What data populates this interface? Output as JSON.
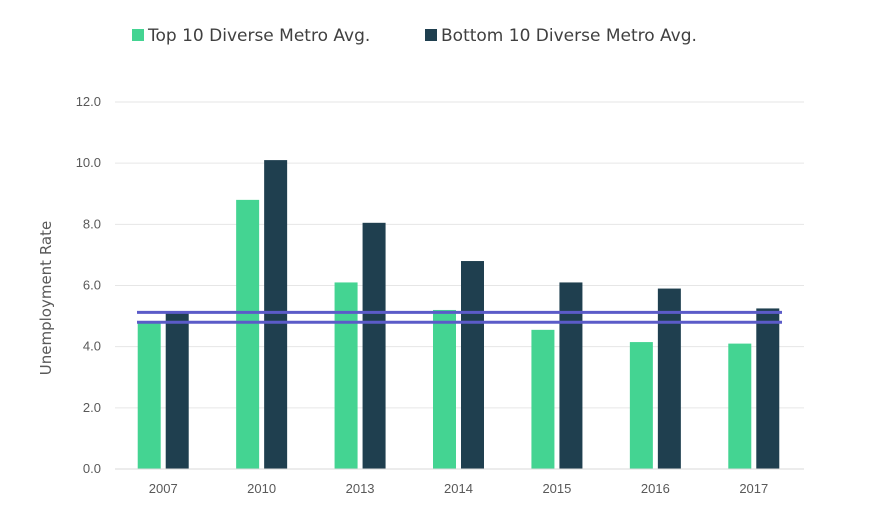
{
  "chart_data": {
    "type": "bar",
    "title": "",
    "xlabel": "",
    "ylabel": "Unemployment Rate",
    "ylim": [
      0,
      12
    ],
    "yticks": [
      "0.0",
      "2.0",
      "4.0",
      "6.0",
      "8.0",
      "10.0",
      "12.0"
    ],
    "ytick_values": [
      0,
      2,
      4,
      6,
      8,
      10,
      12
    ],
    "grid": true,
    "legend_position": "top",
    "categories": [
      "2007",
      "2010",
      "2013",
      "2014",
      "2015",
      "2016",
      "2017"
    ],
    "series": [
      {
        "name": "Top 10 Diverse Metro Avg.",
        "color": "#44d492",
        "values": [
          4.8,
          8.8,
          6.1,
          5.2,
          4.55,
          4.15,
          4.1
        ]
      },
      {
        "name": "Bottom 10 Diverse Metro Avg.",
        "color": "#1f3f4f",
        "values": [
          5.1,
          10.1,
          8.05,
          6.8,
          6.1,
          5.9,
          5.25
        ]
      }
    ],
    "reference_lines": [
      {
        "value": 5.12,
        "color": "#5b5bc8"
      },
      {
        "value": 4.8,
        "color": "#5b5bc8"
      }
    ]
  }
}
